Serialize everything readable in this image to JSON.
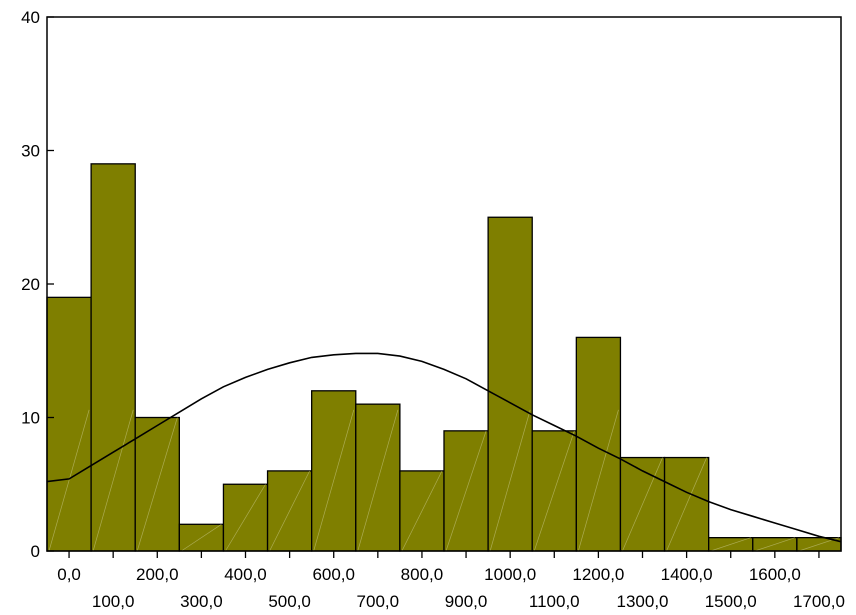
{
  "chart_data": {
    "type": "bar",
    "bin_width": 100,
    "x": [
      0,
      100,
      200,
      300,
      400,
      500,
      600,
      700,
      800,
      900,
      1000,
      1100,
      1200,
      1300,
      1400,
      1500,
      1600,
      1700
    ],
    "values": [
      19,
      29,
      10,
      2,
      5,
      6,
      12,
      11,
      6,
      9,
      25,
      9,
      16,
      7,
      7,
      1,
      1,
      1
    ],
    "x_tick_labels_top": [
      "0,0",
      "200,0",
      "400,0",
      "600,0",
      "800,0",
      "1000,0",
      "1200,0",
      "1400,0",
      "1600,0"
    ],
    "x_tick_labels_bottom": [
      "100,0",
      "300,0",
      "500,0",
      "700,0",
      "900,0",
      "1100,0",
      "1300,0",
      "1500,0",
      "1700,0"
    ],
    "y_ticks": [
      0,
      10,
      20,
      30,
      40
    ],
    "ylim": [
      0,
      40
    ],
    "overlay_curve": {
      "type": "normal-density",
      "points": [
        [
          -50,
          5.2
        ],
        [
          0,
          5.4
        ],
        [
          50,
          6.4
        ],
        [
          100,
          7.4
        ],
        [
          150,
          8.4
        ],
        [
          200,
          9.4
        ],
        [
          250,
          10.4
        ],
        [
          300,
          11.4
        ],
        [
          350,
          12.3
        ],
        [
          400,
          13.0
        ],
        [
          450,
          13.6
        ],
        [
          500,
          14.1
        ],
        [
          550,
          14.5
        ],
        [
          600,
          14.7
        ],
        [
          650,
          14.8
        ],
        [
          700,
          14.8
        ],
        [
          750,
          14.6
        ],
        [
          800,
          14.2
        ],
        [
          850,
          13.6
        ],
        [
          900,
          12.9
        ],
        [
          950,
          12.0
        ],
        [
          1000,
          11.1
        ],
        [
          1050,
          10.2
        ],
        [
          1100,
          9.4
        ],
        [
          1150,
          8.6
        ],
        [
          1200,
          7.7
        ],
        [
          1250,
          6.9
        ],
        [
          1300,
          6.0
        ],
        [
          1350,
          5.2
        ],
        [
          1400,
          4.4
        ],
        [
          1450,
          3.7
        ],
        [
          1500,
          3.1
        ],
        [
          1550,
          2.6
        ],
        [
          1600,
          2.1
        ],
        [
          1650,
          1.6
        ],
        [
          1700,
          1.1
        ],
        [
          1750,
          0.7
        ]
      ]
    },
    "colors": {
      "bar": "#7f7f00",
      "edge": "#000000",
      "curve": "#000000"
    }
  }
}
